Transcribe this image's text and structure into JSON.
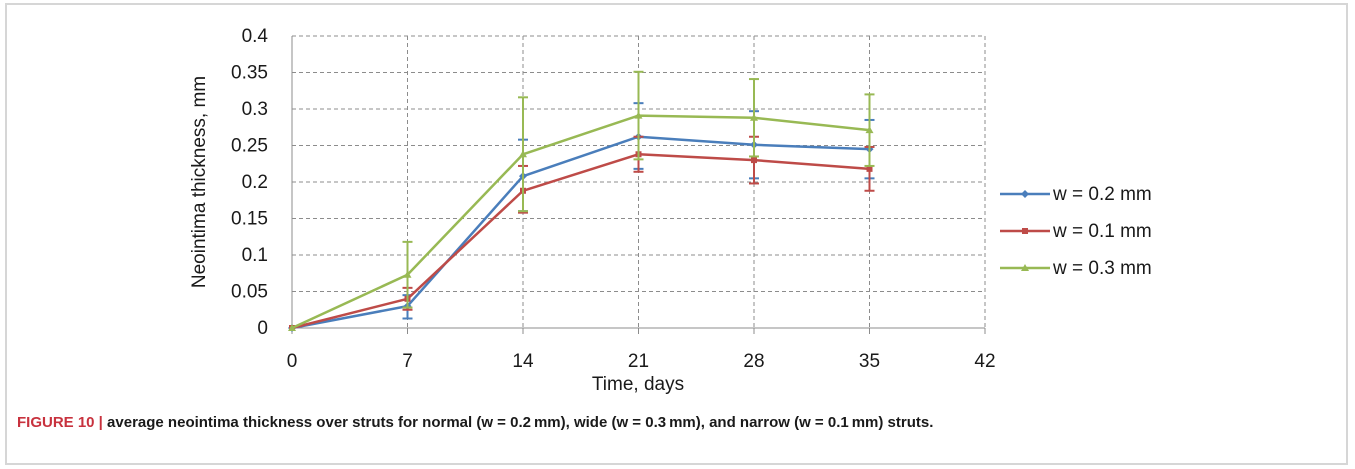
{
  "caption": {
    "label": "FIGURE 10 |",
    "text": " average neointima thickness over struts for normal (w = 0.2 mm), wide (w = 0.3 mm), and narrow (w = 0.1 mm) struts."
  },
  "chart_data": {
    "type": "line",
    "xlabel": "Time, days",
    "ylabel": "Neointima thickness, mm",
    "xlim": [
      0,
      42
    ],
    "ylim": [
      0,
      0.4
    ],
    "xticks": [
      "0",
      "7",
      "14",
      "21",
      "28",
      "35",
      "42"
    ],
    "yticks": [
      "0",
      "0.05",
      "0.1",
      "0.15",
      "0.2",
      "0.25",
      "0.3",
      "0.35",
      "0.4"
    ],
    "grid": true,
    "legend_position": "right",
    "x": [
      0,
      7,
      14,
      21,
      28,
      35
    ],
    "series": [
      {
        "name": "w = 0.2 mm",
        "color": "#4a7ebb",
        "marker": "diamond",
        "values": [
          0,
          0.03,
          0.208,
          0.262,
          0.251,
          0.245
        ],
        "err_upper": [
          0,
          0.045,
          0.258,
          0.308,
          0.297,
          0.285
        ],
        "err_lower": [
          0,
          0.013,
          0.16,
          0.218,
          0.205,
          0.205
        ]
      },
      {
        "name": "w = 0.1 mm",
        "color": "#be4b48",
        "marker": "square",
        "values": [
          0,
          0.04,
          0.188,
          0.238,
          0.23,
          0.218
        ],
        "err_upper": [
          0,
          0.055,
          0.222,
          0.262,
          0.262,
          0.248
        ],
        "err_lower": [
          0,
          0.025,
          0.158,
          0.214,
          0.198,
          0.188
        ]
      },
      {
        "name": "w = 0.3 mm",
        "color": "#98b954",
        "marker": "triangle",
        "values": [
          0,
          0.073,
          0.238,
          0.291,
          0.288,
          0.271
        ],
        "err_upper": [
          0,
          0.118,
          0.316,
          0.351,
          0.341,
          0.32
        ],
        "err_lower": [
          0,
          0.028,
          0.16,
          0.231,
          0.235,
          0.222
        ]
      }
    ]
  }
}
